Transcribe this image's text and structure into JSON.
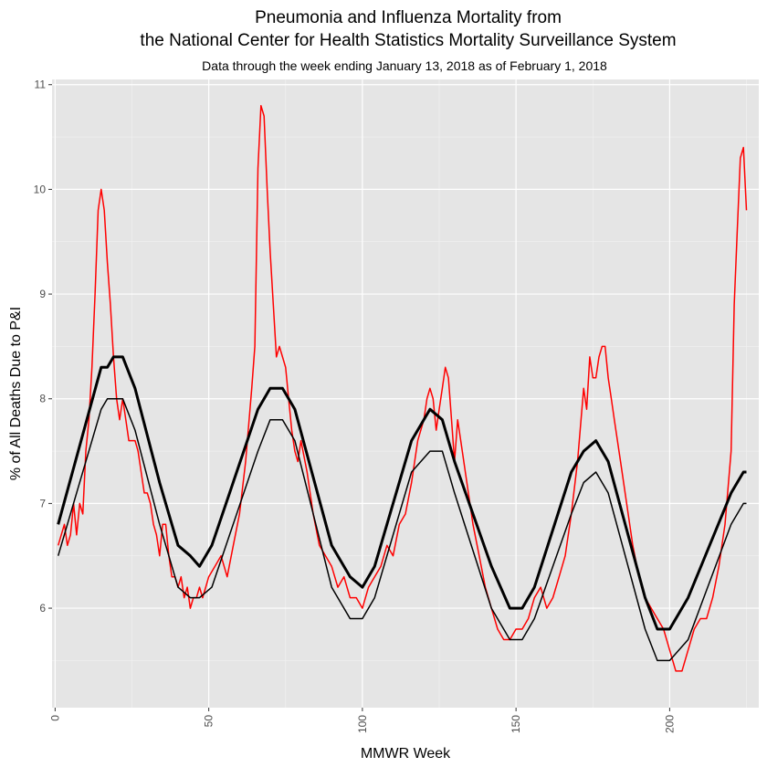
{
  "chart_data": {
    "type": "line",
    "title": "Pneumonia and Influenza Mortality from",
    "title_line2": "the National Center for Health Statistics Mortality Surveillance System",
    "subtitle": "Data through the week ending January 13, 2018 as of February 1, 2018",
    "xlabel": "MMWR Week",
    "ylabel": "% of All Deaths Due to P&I",
    "xlim": [
      -1,
      229
    ],
    "ylim": [
      5.05,
      11.05
    ],
    "x_ticks": [
      0,
      50,
      100,
      150,
      200
    ],
    "x_tick_labels": [
      "0",
      "50",
      "100",
      "150",
      "200"
    ],
    "y_ticks": [
      6,
      7,
      8,
      9,
      10,
      11
    ],
    "y_tick_labels": [
      "6",
      "7",
      "8",
      "9",
      "10",
      "11"
    ],
    "grid": true,
    "background": "#e5e5e5",
    "series": [
      {
        "color": "#ff0000",
        "width": 1.5,
        "x": [
          1,
          2,
          3,
          4,
          5,
          6,
          7,
          8,
          9,
          10,
          11,
          12,
          13,
          14,
          15,
          16,
          17,
          18,
          19,
          20,
          21,
          22,
          23,
          24,
          25,
          26,
          27,
          28,
          29,
          30,
          31,
          32,
          33,
          34,
          35,
          36,
          37,
          38,
          39,
          40,
          41,
          42,
          43,
          44,
          45,
          46,
          47,
          48,
          49,
          50,
          52,
          54,
          56,
          58,
          60,
          62,
          64,
          65,
          66,
          67,
          68,
          69,
          70,
          71,
          72,
          73,
          74,
          75,
          76,
          77,
          78,
          79,
          80,
          82,
          84,
          86,
          88,
          90,
          92,
          94,
          96,
          98,
          100,
          102,
          104,
          106,
          108,
          110,
          112,
          114,
          116,
          118,
          120,
          121,
          122,
          123,
          124,
          125,
          126,
          127,
          128,
          129,
          130,
          131,
          132,
          134,
          136,
          138,
          140,
          142,
          144,
          146,
          148,
          150,
          152,
          154,
          156,
          158,
          160,
          162,
          164,
          166,
          168,
          170,
          172,
          173,
          174,
          175,
          176,
          177,
          178,
          179,
          180,
          181,
          182,
          184,
          186,
          188,
          190,
          192,
          194,
          196,
          198,
          200,
          202,
          204,
          206,
          208,
          210,
          212,
          214,
          216,
          218,
          220,
          221,
          222,
          223,
          224,
          225
        ],
        "y": [
          6.6,
          6.7,
          6.8,
          6.6,
          6.7,
          7.0,
          6.7,
          7.0,
          6.9,
          7.5,
          7.8,
          8.3,
          9.0,
          9.8,
          10.0,
          9.8,
          9.3,
          8.9,
          8.4,
          8.0,
          7.8,
          8.0,
          7.8,
          7.6,
          7.6,
          7.6,
          7.5,
          7.3,
          7.1,
          7.1,
          7.0,
          6.8,
          6.7,
          6.5,
          6.8,
          6.8,
          6.5,
          6.3,
          6.3,
          6.2,
          6.3,
          6.1,
          6.2,
          6.0,
          6.1,
          6.1,
          6.2,
          6.1,
          6.2,
          6.3,
          6.4,
          6.5,
          6.3,
          6.6,
          6.9,
          7.4,
          8.1,
          8.5,
          10.2,
          10.8,
          10.7,
          10.0,
          9.4,
          8.9,
          8.4,
          8.5,
          8.4,
          8.3,
          8.0,
          7.7,
          7.5,
          7.4,
          7.6,
          7.3,
          6.9,
          6.6,
          6.5,
          6.4,
          6.2,
          6.3,
          6.1,
          6.1,
          6.0,
          6.2,
          6.3,
          6.4,
          6.6,
          6.5,
          6.8,
          6.9,
          7.2,
          7.6,
          7.8,
          8.0,
          8.1,
          8.0,
          7.7,
          7.9,
          8.1,
          8.3,
          8.2,
          7.8,
          7.4,
          7.8,
          7.6,
          7.2,
          6.8,
          6.5,
          6.2,
          6.0,
          5.8,
          5.7,
          5.7,
          5.8,
          5.8,
          5.9,
          6.1,
          6.2,
          6.0,
          6.1,
          6.3,
          6.5,
          6.9,
          7.4,
          8.1,
          7.9,
          8.4,
          8.2,
          8.2,
          8.4,
          8.5,
          8.5,
          8.2,
          8.0,
          7.8,
          7.4,
          7.0,
          6.6,
          6.3,
          6.1,
          6.0,
          5.9,
          5.8,
          5.6,
          5.4,
          5.4,
          5.6,
          5.8,
          5.9,
          5.9,
          6.1,
          6.4,
          6.8,
          7.5,
          8.9,
          9.6,
          10.3,
          10.4,
          9.8
        ]
      },
      {
        "color": "#000000",
        "width": 3,
        "x": [
          1,
          15,
          17,
          19,
          22,
          26,
          34,
          40,
          44,
          47,
          51,
          66,
          70,
          74,
          78,
          90,
          96,
          100,
          104,
          116,
          122,
          126,
          130,
          142,
          148,
          152,
          156,
          168,
          172,
          176,
          180,
          192,
          196,
          200,
          206,
          220,
          224,
          225
        ],
        "y": [
          6.8,
          8.3,
          8.3,
          8.4,
          8.4,
          8.1,
          7.2,
          6.6,
          6.5,
          6.4,
          6.6,
          7.9,
          8.1,
          8.1,
          7.9,
          6.6,
          6.3,
          6.2,
          6.4,
          7.6,
          7.9,
          7.8,
          7.4,
          6.4,
          6.0,
          6.0,
          6.2,
          7.3,
          7.5,
          7.6,
          7.4,
          6.1,
          5.8,
          5.8,
          6.1,
          7.1,
          7.3,
          7.3
        ]
      },
      {
        "color": "#000000",
        "width": 1.5,
        "x": [
          1,
          15,
          17,
          19,
          22,
          26,
          34,
          40,
          44,
          47,
          51,
          66,
          70,
          74,
          78,
          90,
          96,
          100,
          104,
          116,
          122,
          126,
          130,
          142,
          148,
          152,
          156,
          168,
          172,
          176,
          180,
          192,
          196,
          200,
          206,
          220,
          224,
          225
        ],
        "y": [
          6.5,
          7.9,
          8.0,
          8.0,
          8.0,
          7.7,
          6.8,
          6.2,
          6.1,
          6.1,
          6.2,
          7.5,
          7.8,
          7.8,
          7.6,
          6.2,
          5.9,
          5.9,
          6.1,
          7.3,
          7.5,
          7.5,
          7.1,
          6.0,
          5.7,
          5.7,
          5.9,
          6.9,
          7.2,
          7.3,
          7.1,
          5.8,
          5.5,
          5.5,
          5.7,
          6.8,
          7.0,
          7.0
        ]
      }
    ]
  }
}
